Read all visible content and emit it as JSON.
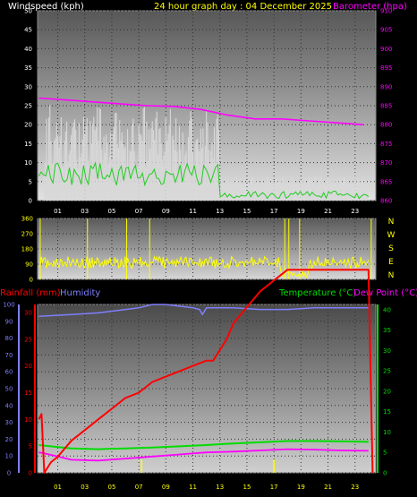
{
  "header": {
    "title": "24 hour graph day : 04 December 2025",
    "wind_label": "Windspeed (kph)",
    "baro_label": "Barometer (hpa)",
    "rain_label": "Rainfall (mm)",
    "hum_label": "Humidity",
    "temp_label": "Temperature (°C)",
    "dew_label": "Dew Point (°C)"
  },
  "colors": {
    "title": "#ffff00",
    "wind": "#ffffff",
    "barometer": "#ff00ff",
    "gust": "#d8d8d8",
    "wind_avg": "#22cc22",
    "direction": "#ffff00",
    "rain": "#ff0000",
    "humidity": "#7f7fff",
    "temperature": "#00dd00",
    "dewpoint": "#ff00ff"
  },
  "chart_data": [
    {
      "type": "line",
      "name": "wind-barometer",
      "x_ticks": [
        "01",
        "03",
        "05",
        "07",
        "09",
        "11",
        "13",
        "15",
        "17",
        "19",
        "21",
        "23"
      ],
      "y_left_ticks": [
        "0",
        "5",
        "10",
        "15",
        "20",
        "25",
        "30",
        "35",
        "40",
        "45",
        "50"
      ],
      "y_right_ticks": [
        "860",
        "865",
        "870",
        "875",
        "880",
        "885",
        "890",
        "895",
        "900",
        "905",
        "910"
      ],
      "ylim_left": [
        0,
        50
      ],
      "ylim_right": [
        860,
        910
      ],
      "series": [
        {
          "name": "Barometer",
          "x": [
            0,
            2,
            4,
            6,
            8,
            10,
            12,
            14,
            16,
            18,
            20,
            22,
            24
          ],
          "y": [
            887.0,
            886.5,
            886.0,
            885.5,
            885.0,
            884.8,
            884.0,
            882.5,
            881.5,
            881.5,
            881.0,
            880.5,
            880.0
          ]
        }
      ]
    },
    {
      "type": "line",
      "name": "wind-direction",
      "y_ticks": [
        "0",
        "90",
        "180",
        "270",
        "360"
      ],
      "compass": [
        "N",
        "W",
        "S",
        "E",
        "N"
      ],
      "ylim": [
        0,
        360
      ]
    },
    {
      "type": "line",
      "name": "rain-humidity-temperature",
      "y_humidity_ticks": [
        "0",
        "10",
        "20",
        "30",
        "40",
        "50",
        "60",
        "70",
        "80",
        "90",
        "100"
      ],
      "y_rain_ticks": [
        "0",
        "5",
        "10",
        "15",
        "20",
        "25",
        "30"
      ],
      "y_temp_ticks": [
        "0",
        "5",
        "10",
        "15",
        "20",
        "25",
        "30",
        "35",
        "40"
      ],
      "series": [
        {
          "name": "Rainfall (mm)",
          "x": [
            -0.4,
            -0.2,
            0,
            0.5,
            1,
            2,
            3,
            4,
            5,
            6,
            7,
            8,
            9,
            10,
            11,
            12,
            12.5,
            13,
            13.5,
            14,
            15,
            16,
            17,
            17.5,
            18,
            24,
            24.3
          ],
          "y": [
            10,
            11,
            0,
            2,
            3,
            6,
            8,
            10,
            12,
            14,
            15,
            17,
            18,
            19,
            20,
            21,
            21,
            23,
            25,
            28,
            31,
            34,
            36,
            37,
            38,
            38,
            0
          ]
        },
        {
          "name": "Humidity",
          "x": [
            -0.4,
            2,
            4,
            5,
            6,
            7,
            8,
            9,
            10,
            11,
            11.5,
            11.7,
            12,
            14,
            16,
            18,
            20,
            22,
            24
          ],
          "y": [
            93,
            94,
            95,
            96,
            97,
            98,
            100,
            100,
            99,
            98,
            97,
            94,
            98,
            98,
            97,
            97,
            98,
            98,
            98
          ]
        },
        {
          "name": "Temperature (°C)",
          "x": [
            -0.4,
            2,
            4,
            6,
            8,
            10,
            12,
            14,
            16,
            18,
            20,
            22,
            24
          ],
          "y": [
            6.8,
            6.0,
            5.8,
            6.0,
            6.2,
            6.5,
            6.8,
            7.2,
            7.5,
            7.8,
            7.8,
            7.7,
            7.6
          ]
        },
        {
          "name": "Dew Point (°C)",
          "x": [
            -0.4,
            0,
            2,
            4,
            6,
            8,
            10,
            12,
            14,
            16,
            18,
            20,
            22,
            24
          ],
          "y": [
            5.0,
            4.8,
            3.2,
            3.0,
            3.5,
            4.0,
            4.5,
            5.0,
            5.2,
            5.5,
            5.8,
            5.7,
            5.5,
            5.4
          ]
        }
      ]
    }
  ]
}
